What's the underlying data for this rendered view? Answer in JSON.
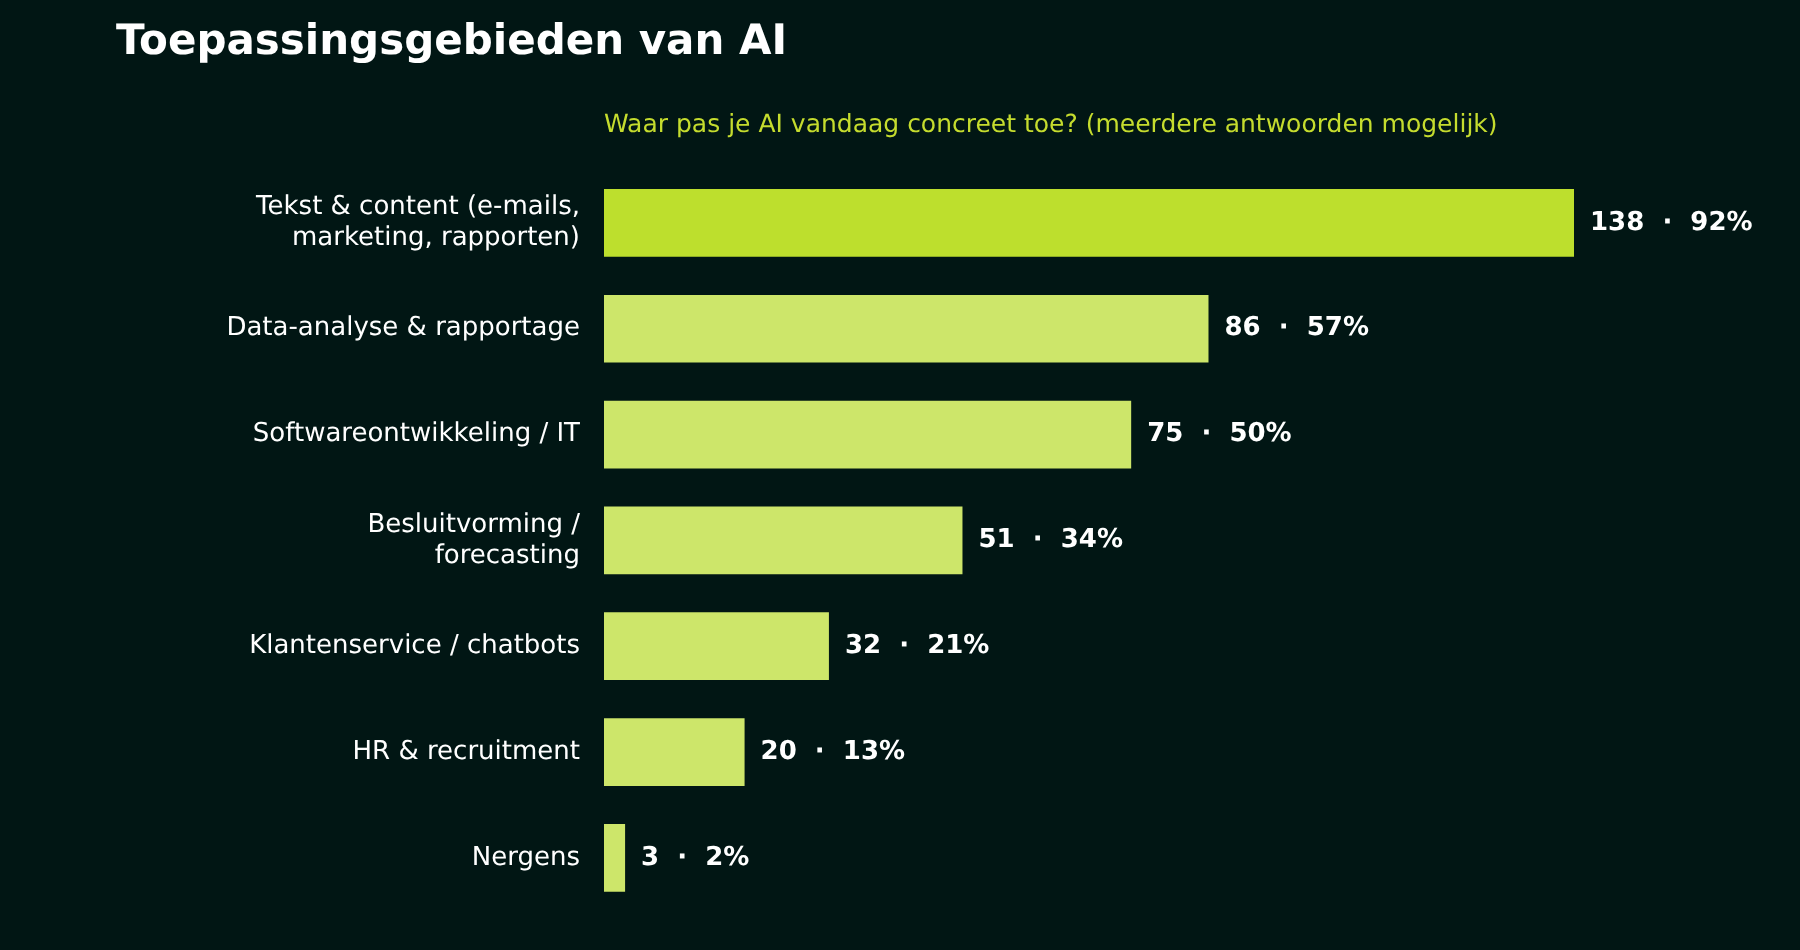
{
  "chart_data": {
    "type": "bar",
    "orientation": "horizontal",
    "title": "Toepassingsgebieden van AI",
    "subtitle": "Waar pas je AI vandaag concreet toe? (meerdere antwoorden mogelijk)",
    "categories": [
      "Tekst & content (e-mails, marketing, rapporten)",
      "Data-analyse & rapportage",
      "Softwareontwikkeling / IT",
      "Besluitvorming / forecasting",
      "Klantenservice / chatbots",
      "HR & recruitment",
      "Nergens"
    ],
    "values": [
      138,
      86,
      75,
      51,
      32,
      20,
      3
    ],
    "colors": [
      "#bddf2d",
      "#cde66a",
      "#cde66a",
      "#cde66a",
      "#cde66a",
      "#cde66a",
      "#cde66a"
    ],
    "value_labels": [
      "138  ·  92%",
      "86  ·  57%",
      "75  ·  50%",
      "51  ·  34%",
      "32  ·  21%",
      "20  ·  13%",
      "3  ·  2%"
    ],
    "legend": false
  }
}
